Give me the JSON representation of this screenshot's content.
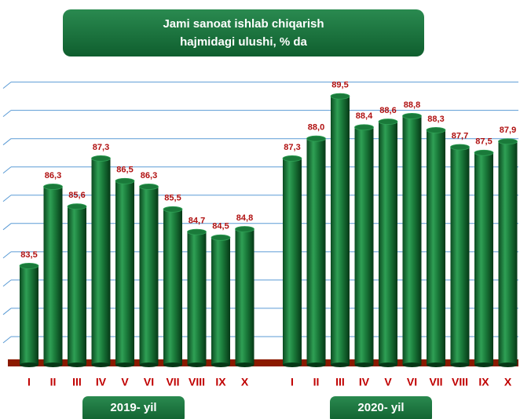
{
  "chart_data": {
    "type": "bar",
    "title": [
      "Jami sanoat ishlab chiqarish",
      "hajmidagi ulushi, % da"
    ],
    "categories": [
      "I",
      "II",
      "III",
      "IV",
      "V",
      "VI",
      "VII",
      "VIII",
      "IX",
      "X"
    ],
    "series": [
      {
        "name": "2019- yil",
        "color": "#1a7a3a",
        "values": [
          83.5,
          86.3,
          85.6,
          87.3,
          86.5,
          86.3,
          85.5,
          84.7,
          84.5,
          84.8
        ],
        "value_labels": [
          "83,5",
          "86,3",
          "85,6",
          "87,3",
          "86,5",
          "86,3",
          "85,5",
          "84,7",
          "84,5",
          "84,8"
        ]
      },
      {
        "name": "2020- yil",
        "color": "#1a7a3a",
        "values": [
          87.3,
          88.0,
          89.5,
          88.4,
          88.6,
          88.8,
          88.3,
          87.7,
          87.5,
          87.9
        ],
        "value_labels": [
          "87,3",
          "88,0",
          "89,5",
          "88,4",
          "88,6",
          "88,8",
          "88,3",
          "87,7",
          "87,5",
          "87,9"
        ]
      }
    ],
    "ylim": [
      80,
      90.6
    ],
    "yticks": [
      81,
      82,
      83,
      84,
      85,
      86,
      87,
      88,
      89,
      90
    ],
    "grid": true
  }
}
